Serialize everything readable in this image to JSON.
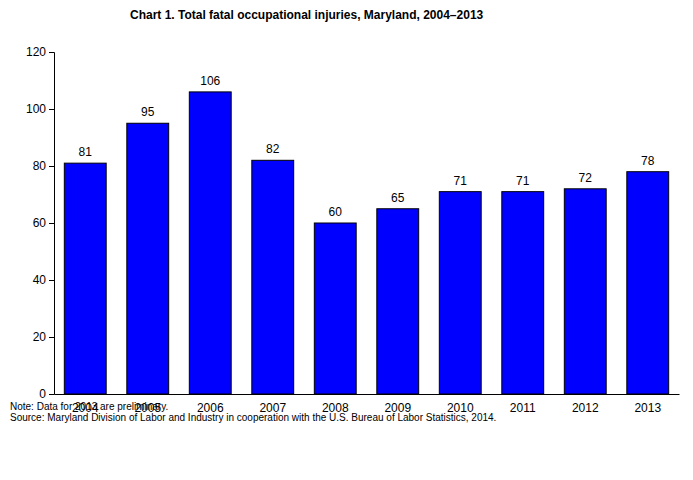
{
  "chart_data": {
    "type": "bar",
    "title": "Chart 1. Total fatal occupational injuries, Maryland, 2004–2013",
    "categories": [
      "2004",
      "2005",
      "2006",
      "2007",
      "2008",
      "2009",
      "2010",
      "2011",
      "2012",
      "2013"
    ],
    "values": [
      81,
      95,
      106,
      82,
      60,
      65,
      71,
      71,
      72,
      78
    ],
    "color": "#0000ff",
    "ylim": [
      0,
      120
    ],
    "yticks": [
      0,
      20,
      40,
      60,
      80,
      100,
      120
    ],
    "grid": false,
    "data_labels": true,
    "annotations": [
      "Note: Data for 2013 are preliminary.",
      "Source: Maryland Division of Labor and Industry in cooperation with the U.S. Bureau of Labor Statistics, 2014."
    ]
  }
}
